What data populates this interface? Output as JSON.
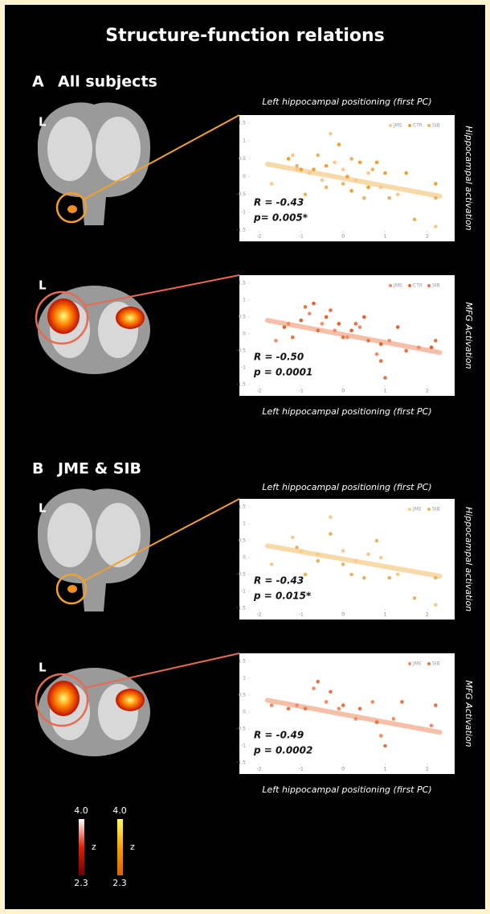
{
  "figure": {
    "title": "Structure-function relations",
    "side_label": "L",
    "sections": [
      {
        "letter": "A",
        "label": "All subjects"
      },
      {
        "letter": "B",
        "label": "JME & SIB"
      }
    ],
    "colorbars": [
      {
        "max": "4.0",
        "min": "2.3",
        "label": "z"
      },
      {
        "max": "4.0",
        "min": "2.3",
        "label": "z"
      }
    ]
  },
  "chart_data": [
    {
      "type": "scatter",
      "xlabel": "Left hippocampal positioning (first PC)",
      "ylabel": "Hippocampal activation",
      "annotations": [
        "R = -0.43",
        "p= 0.005*"
      ],
      "xlim": [
        -2.2,
        2.5
      ],
      "ylim": [
        -1.5,
        1.5
      ],
      "xticks": [
        -2,
        -1,
        0,
        1,
        2
      ],
      "yticks": [
        -1.5,
        -1,
        -0.5,
        0,
        0.5,
        1,
        1.5
      ],
      "legend": "top-right",
      "series": [
        {
          "name": "JME",
          "color": "#f7c98a",
          "x": [
            -1.7,
            -1.2,
            -1.1,
            -0.8,
            -0.5,
            -0.3,
            -0.2,
            0,
            0.3,
            0.6,
            0.9,
            1.3,
            2.2
          ],
          "values": [
            -0.2,
            0.6,
            0.2,
            0.1,
            -0.1,
            1.2,
            0.4,
            0.2,
            -0.1,
            0.1,
            -0.3,
            -0.5,
            -1.4
          ]
        },
        {
          "name": "CTR",
          "color": "#f0a030",
          "x": [
            -1.3,
            -1,
            -0.7,
            -0.4,
            -0.1,
            0.1,
            0.2,
            0.4,
            0.6,
            0.8,
            1,
            1.5,
            2.2
          ],
          "values": [
            0.5,
            0.2,
            0.2,
            0.3,
            0.9,
            0,
            -0.4,
            0.4,
            -0.3,
            0.4,
            0.1,
            0.1,
            -0.2
          ]
        },
        {
          "name": "SIB",
          "color": "#e8b464",
          "x": [
            -1.1,
            -0.9,
            -0.6,
            -0.4,
            0,
            0.2,
            0.5,
            0.7,
            1.1,
            1.7,
            2.2
          ],
          "values": [
            0.3,
            -0.5,
            0.6,
            -0.3,
            -0.2,
            0.5,
            -0.6,
            0.2,
            -0.6,
            -1.2,
            -0.6
          ]
        }
      ],
      "trendline": {
        "color": "#f8d9a8",
        "x": [
          -1.8,
          2.3
        ],
        "values": [
          0.35,
          -0.55
        ]
      }
    },
    {
      "type": "scatter",
      "xlabel": "Left hippocampal positioning (first PC)",
      "ylabel": "MFG Activation",
      "annotations": [
        "R = -0.50",
        "p = 0.0001"
      ],
      "xlim": [
        -2.2,
        2.5
      ],
      "ylim": [
        -1.5,
        1.5
      ],
      "xticks": [
        -2,
        -1,
        0,
        1,
        2
      ],
      "yticks": [
        -1.5,
        -1,
        -0.5,
        0,
        0.5,
        1,
        1.5
      ],
      "legend": "top-right",
      "series": [
        {
          "name": "JME",
          "color": "#f28a68",
          "x": [
            -1.6,
            -1.3,
            -0.8,
            -0.5,
            -0.2,
            0.1,
            0.4,
            0.8,
            1.1,
            1.8
          ],
          "values": [
            -0.2,
            0.3,
            0.6,
            0.3,
            0.1,
            -0.1,
            0.2,
            -0.6,
            -0.2,
            -0.4
          ]
        },
        {
          "name": "CTR",
          "color": "#e8602c",
          "x": [
            -1.4,
            -1,
            -0.7,
            -0.4,
            -0.1,
            0.2,
            0.5,
            0.9,
            1.3,
            2.1
          ],
          "values": [
            0.2,
            0.4,
            0.9,
            0.5,
            0.3,
            0.1,
            0.5,
            -0.3,
            0.2,
            -0.4
          ]
        },
        {
          "name": "SIB",
          "color": "#e47444",
          "x": [
            -1.2,
            -0.9,
            -0.6,
            -0.3,
            0,
            0.3,
            0.6,
            0.9,
            1,
            1.5,
            2.2
          ],
          "values": [
            -0.1,
            0.8,
            0.1,
            0.7,
            -0.1,
            0.3,
            -0.2,
            -0.8,
            -1.3,
            -0.5,
            -0.2
          ]
        }
      ],
      "trendline": {
        "color": "#f6c0a8",
        "x": [
          -1.8,
          2.3
        ],
        "values": [
          0.4,
          -0.55
        ]
      }
    },
    {
      "type": "scatter",
      "xlabel": "Left hippocampal positioning (first PC)",
      "ylabel": "Hippocampal activation",
      "annotations": [
        "R = -0.43",
        "p = 0.015*"
      ],
      "xlim": [
        -2.2,
        2.5
      ],
      "ylim": [
        -1.5,
        1.5
      ],
      "xticks": [
        -2,
        -1,
        0,
        1,
        2
      ],
      "yticks": [
        -1.5,
        -1,
        -0.5,
        0,
        0.5,
        1,
        1.5
      ],
      "legend": "top-right",
      "series": [
        {
          "name": "JME",
          "color": "#f7c98a",
          "x": [
            -1.7,
            -1.2,
            -1,
            -0.6,
            -0.3,
            0,
            0.3,
            0.6,
            0.9,
            1.3,
            2.2
          ],
          "values": [
            -0.2,
            0.6,
            0.2,
            0.1,
            1.2,
            0.2,
            -0.1,
            0.1,
            0,
            -0.5,
            -1.4
          ]
        },
        {
          "name": "SIB",
          "color": "#e8b464",
          "x": [
            -1.1,
            -0.9,
            -0.6,
            -0.3,
            0,
            0.2,
            0.5,
            0.8,
            1.1,
            1.7,
            2.2
          ],
          "values": [
            0.3,
            -0.5,
            -0.1,
            0.7,
            -0.2,
            -0.5,
            -0.6,
            0.5,
            -0.6,
            -1.2,
            -0.6
          ]
        }
      ],
      "trendline": {
        "color": "#f8d9a8",
        "x": [
          -1.8,
          2.3
        ],
        "values": [
          0.35,
          -0.55
        ]
      }
    },
    {
      "type": "scatter",
      "xlabel": "Left hippocampal positioning (first PC)",
      "ylabel": "MFG Activation",
      "annotations": [
        "R = -0.49",
        "p = 0.0002"
      ],
      "xlim": [
        -2.2,
        2.5
      ],
      "ylim": [
        -1.5,
        1.5
      ],
      "xticks": [
        -2,
        -1,
        0,
        1,
        2
      ],
      "yticks": [
        -1.5,
        -1,
        -0.5,
        0,
        0.5,
        1,
        1.5
      ],
      "legend": "top-right",
      "series": [
        {
          "name": "JME",
          "color": "#f28a68",
          "x": [
            -1.7,
            -1.1,
            -0.7,
            -0.4,
            -0.1,
            0.3,
            0.7,
            0.9,
            1.2,
            2.1
          ],
          "values": [
            0.2,
            0.2,
            0.7,
            0.3,
            0.1,
            -0.2,
            0.3,
            -0.7,
            -0.2,
            -0.4
          ]
        },
        {
          "name": "SIB",
          "color": "#e47444",
          "x": [
            -1.3,
            -0.9,
            -0.6,
            -0.3,
            0,
            0.4,
            0.8,
            1,
            1.4,
            2.2
          ],
          "values": [
            0.1,
            0.1,
            0.9,
            0.6,
            0.2,
            0.1,
            -0.3,
            -1,
            0.3,
            0.2
          ]
        }
      ],
      "trendline": {
        "color": "#f6c0a8",
        "x": [
          -1.8,
          2.3
        ],
        "values": [
          0.35,
          -0.6
        ]
      }
    }
  ]
}
